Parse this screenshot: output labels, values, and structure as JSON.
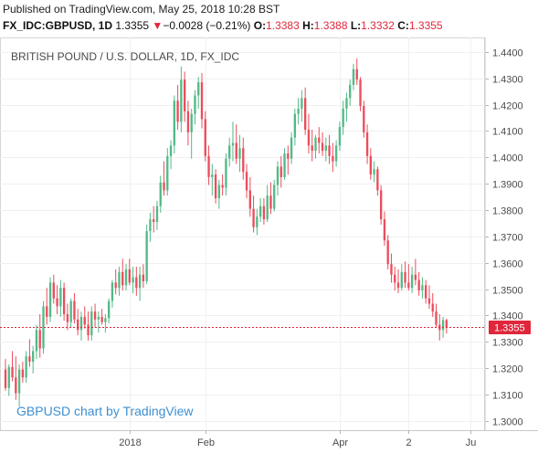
{
  "header": {
    "published": "Published on TradingView.com, May 25, 2018 10:28 BST",
    "symbol": "FX_IDC:GBPUSD, 1D",
    "last": "1.3355",
    "change_arrow": "▼",
    "change": "−0.0028 (−0.21%)",
    "open_label": "O:",
    "open": "1.3383",
    "high_label": "H:",
    "high": "1.3388",
    "low_label": "L:",
    "low": "1.3332",
    "close_label": "C:",
    "close": "1.3355"
  },
  "colors": {
    "up": "#53b987",
    "down": "#eb4d5c",
    "price_line": "#e0263b",
    "watermark": "#3d8fd1"
  },
  "chart_data": {
    "type": "candlestick",
    "title": "BRITISH POUND / U.S. DOLLAR, 1D, FX_IDC",
    "watermark": "GBPUSD chart by TradingView",
    "last_price_label": "1.3355",
    "last_price": 1.3355,
    "ylim": [
      1.2965,
      1.4455
    ],
    "y_ticks": [
      {
        "v": 1.44,
        "label": "1.4400"
      },
      {
        "v": 1.43,
        "label": "1.4300"
      },
      {
        "v": 1.42,
        "label": "1.4200"
      },
      {
        "v": 1.41,
        "label": "1.4100"
      },
      {
        "v": 1.4,
        "label": "1.4000"
      },
      {
        "v": 1.39,
        "label": "1.3900"
      },
      {
        "v": 1.38,
        "label": "1.3800"
      },
      {
        "v": 1.37,
        "label": "1.3700"
      },
      {
        "v": 1.36,
        "label": "1.3600"
      },
      {
        "v": 1.35,
        "label": "1.3500"
      },
      {
        "v": 1.34,
        "label": "1.3400"
      },
      {
        "v": 1.33,
        "label": "1.3300"
      },
      {
        "v": 1.32,
        "label": "1.3200"
      },
      {
        "v": 1.31,
        "label": "1.3100"
      },
      {
        "v": 1.3,
        "label": "1.3000"
      }
    ],
    "x_ticks": [
      {
        "i": 36,
        "label": "2018"
      },
      {
        "i": 58,
        "label": "Feb"
      },
      {
        "i": 97,
        "label": "Apr"
      },
      {
        "i": 117,
        "label": "2"
      },
      {
        "i": 135,
        "label": "Ju"
      }
    ],
    "x_count": 137,
    "candles": [
      [
        1.3195,
        1.3235,
        1.3115,
        1.3125
      ],
      [
        1.3125,
        1.3215,
        1.3095,
        1.3205
      ],
      [
        1.3205,
        1.3265,
        1.315,
        1.3165
      ],
      [
        1.3165,
        1.3245,
        1.308,
        1.3105
      ],
      [
        1.3105,
        1.3215,
        1.3055,
        1.3195
      ],
      [
        1.3195,
        1.3225,
        1.3145,
        1.3165
      ],
      [
        1.3165,
        1.3265,
        1.3145,
        1.3245
      ],
      [
        1.3245,
        1.331,
        1.3205,
        1.3225
      ],
      [
        1.3225,
        1.3285,
        1.318,
        1.3265
      ],
      [
        1.3265,
        1.3365,
        1.3235,
        1.3345
      ],
      [
        1.3345,
        1.3405,
        1.324,
        1.3275
      ],
      [
        1.3275,
        1.3455,
        1.3255,
        1.3435
      ],
      [
        1.3435,
        1.3505,
        1.3365,
        1.3395
      ],
      [
        1.3395,
        1.3545,
        1.3375,
        1.3525
      ],
      [
        1.3525,
        1.3555,
        1.3445,
        1.3465
      ],
      [
        1.3465,
        1.3515,
        1.3405,
        1.3435
      ],
      [
        1.3435,
        1.3535,
        1.3395,
        1.3505
      ],
      [
        1.3505,
        1.3525,
        1.338,
        1.3405
      ],
      [
        1.3405,
        1.3445,
        1.3345,
        1.3375
      ],
      [
        1.3375,
        1.3465,
        1.3355,
        1.3455
      ],
      [
        1.3455,
        1.3485,
        1.337,
        1.3385
      ],
      [
        1.3385,
        1.3425,
        1.3325,
        1.3345
      ],
      [
        1.3345,
        1.3415,
        1.3305,
        1.3395
      ],
      [
        1.3395,
        1.3435,
        1.335,
        1.3365
      ],
      [
        1.3365,
        1.3415,
        1.3305,
        1.3325
      ],
      [
        1.3325,
        1.3435,
        1.3305,
        1.3415
      ],
      [
        1.3415,
        1.3445,
        1.3355,
        1.3385
      ],
      [
        1.3385,
        1.3415,
        1.3335,
        1.3395
      ],
      [
        1.3395,
        1.3425,
        1.3365,
        1.3375
      ],
      [
        1.3375,
        1.3405,
        1.3335,
        1.339
      ],
      [
        1.339,
        1.3465,
        1.337,
        1.3455
      ],
      [
        1.3455,
        1.3535,
        1.343,
        1.3525
      ],
      [
        1.3525,
        1.3575,
        1.348,
        1.3505
      ],
      [
        1.3505,
        1.3585,
        1.3475,
        1.3565
      ],
      [
        1.3565,
        1.3615,
        1.3495,
        1.3515
      ],
      [
        1.3515,
        1.3595,
        1.3495,
        1.3575
      ],
      [
        1.3575,
        1.3615,
        1.3515,
        1.3525
      ],
      [
        1.3525,
        1.3585,
        1.3485,
        1.3545
      ],
      [
        1.3545,
        1.3585,
        1.3475,
        1.3505
      ],
      [
        1.3505,
        1.3585,
        1.3455,
        1.3555
      ],
      [
        1.3555,
        1.3595,
        1.3505,
        1.353
      ],
      [
        1.353,
        1.3745,
        1.352,
        1.372
      ],
      [
        1.372,
        1.379,
        1.368,
        1.3765
      ],
      [
        1.3765,
        1.3815,
        1.3715,
        1.3755
      ],
      [
        1.3755,
        1.3835,
        1.3725,
        1.3815
      ],
      [
        1.3815,
        1.393,
        1.379,
        1.3905
      ],
      [
        1.3905,
        1.3985,
        1.3855,
        1.3875
      ],
      [
        1.3875,
        1.4035,
        1.3855,
        1.4005
      ],
      [
        1.4005,
        1.4065,
        1.3955,
        1.4045
      ],
      [
        1.4045,
        1.4235,
        1.4015,
        1.4215
      ],
      [
        1.4215,
        1.4275,
        1.4105,
        1.4135
      ],
      [
        1.4135,
        1.4345,
        1.4095,
        1.4295
      ],
      [
        1.4295,
        1.4325,
        1.4135,
        1.4175
      ],
      [
        1.4175,
        1.4215,
        1.4045,
        1.4095
      ],
      [
        1.4095,
        1.4185,
        1.3995,
        1.4165
      ],
      [
        1.4165,
        1.4255,
        1.4125,
        1.4235
      ],
      [
        1.4235,
        1.4305,
        1.4185,
        1.4285
      ],
      [
        1.4285,
        1.432,
        1.411,
        1.4145
      ],
      [
        1.4145,
        1.4175,
        1.3985,
        1.4005
      ],
      [
        1.4005,
        1.4045,
        1.3895,
        1.3925
      ],
      [
        1.3925,
        1.3975,
        1.3855,
        1.3935
      ],
      [
        1.3935,
        1.3955,
        1.3825,
        1.3845
      ],
      [
        1.3845,
        1.3915,
        1.3805,
        1.3895
      ],
      [
        1.3895,
        1.3935,
        1.3855,
        1.3885
      ],
      [
        1.3885,
        1.4015,
        1.3855,
        1.3995
      ],
      [
        1.3995,
        1.4075,
        1.3965,
        1.4045
      ],
      [
        1.4045,
        1.4135,
        1.3985,
        1.4055
      ],
      [
        1.4055,
        1.4125,
        1.3975,
        1.3995
      ],
      [
        1.3995,
        1.4085,
        1.3945,
        1.4035
      ],
      [
        1.4035,
        1.4075,
        1.3915,
        1.3945
      ],
      [
        1.3945,
        1.3975,
        1.3845,
        1.3875
      ],
      [
        1.3875,
        1.3925,
        1.3775,
        1.3805
      ],
      [
        1.3805,
        1.3855,
        1.3715,
        1.3735
      ],
      [
        1.3735,
        1.3805,
        1.3705,
        1.3775
      ],
      [
        1.3775,
        1.3845,
        1.3755,
        1.3815
      ],
      [
        1.3815,
        1.3845,
        1.3745,
        1.3765
      ],
      [
        1.3765,
        1.3895,
        1.3755,
        1.3855
      ],
      [
        1.3855,
        1.3905,
        1.3785,
        1.3805
      ],
      [
        1.3805,
        1.3915,
        1.3795,
        1.3895
      ],
      [
        1.3895,
        1.3985,
        1.3855,
        1.3965
      ],
      [
        1.3965,
        1.4005,
        1.3885,
        1.3925
      ],
      [
        1.3925,
        1.4035,
        1.3915,
        1.4015
      ],
      [
        1.4015,
        1.4045,
        1.3935,
        1.3995
      ],
      [
        1.3995,
        1.4095,
        1.3975,
        1.4075
      ],
      [
        1.4075,
        1.4185,
        1.4045,
        1.4165
      ],
      [
        1.4165,
        1.4225,
        1.4125,
        1.4185
      ],
      [
        1.4185,
        1.4255,
        1.4135,
        1.4225
      ],
      [
        1.4225,
        1.4265,
        1.4085,
        1.4105
      ],
      [
        1.4105,
        1.4165,
        1.4015,
        1.4045
      ],
      [
        1.4045,
        1.4105,
        1.3985,
        1.4025
      ],
      [
        1.4025,
        1.4085,
        1.3995,
        1.4075
      ],
      [
        1.4075,
        1.4115,
        1.4015,
        1.4055
      ],
      [
        1.4055,
        1.4095,
        1.4005,
        1.4025
      ],
      [
        1.4025,
        1.4075,
        1.3985,
        1.4045
      ],
      [
        1.4045,
        1.4085,
        1.3975,
        1.4005
      ],
      [
        1.4005,
        1.4055,
        1.3945,
        1.3985
      ],
      [
        1.3985,
        1.4065,
        1.3965,
        1.4045
      ],
      [
        1.4045,
        1.4135,
        1.4025,
        1.4115
      ],
      [
        1.4115,
        1.4215,
        1.4085,
        1.4185
      ],
      [
        1.4185,
        1.4245,
        1.4135,
        1.4225
      ],
      [
        1.4225,
        1.4295,
        1.4195,
        1.4275
      ],
      [
        1.4275,
        1.4355,
        1.4255,
        1.4335
      ],
      [
        1.4335,
        1.4375,
        1.4275,
        1.4295
      ],
      [
        1.4295,
        1.4305,
        1.4175,
        1.4195
      ],
      [
        1.4195,
        1.4215,
        1.4075,
        1.4095
      ],
      [
        1.4095,
        1.4125,
        1.3975,
        1.4005
      ],
      [
        1.4005,
        1.4035,
        1.3915,
        1.3935
      ],
      [
        1.3935,
        1.3985,
        1.3905,
        1.3955
      ],
      [
        1.3955,
        1.3965,
        1.3855,
        1.3875
      ],
      [
        1.3875,
        1.3895,
        1.3745,
        1.3765
      ],
      [
        1.3765,
        1.3795,
        1.3665,
        1.3685
      ],
      [
        1.3685,
        1.3705,
        1.3575,
        1.3595
      ],
      [
        1.3595,
        1.3635,
        1.3525,
        1.3555
      ],
      [
        1.3555,
        1.3585,
        1.3495,
        1.3525
      ],
      [
        1.3525,
        1.3575,
        1.3485,
        1.3505
      ],
      [
        1.3505,
        1.3595,
        1.3495,
        1.3565
      ],
      [
        1.3565,
        1.3605,
        1.3505,
        1.3525
      ],
      [
        1.3525,
        1.3595,
        1.3495,
        1.3505
      ],
      [
        1.3505,
        1.3585,
        1.3485,
        1.3555
      ],
      [
        1.3555,
        1.3615,
        1.3515,
        1.3535
      ],
      [
        1.3535,
        1.3565,
        1.3475,
        1.3495
      ],
      [
        1.3495,
        1.3545,
        1.3465,
        1.3515
      ],
      [
        1.3515,
        1.3535,
        1.3445,
        1.3465
      ],
      [
        1.3465,
        1.3515,
        1.3425,
        1.3445
      ],
      [
        1.3445,
        1.3485,
        1.3395,
        1.3415
      ],
      [
        1.3415,
        1.3445,
        1.3355,
        1.3365
      ],
      [
        1.3365,
        1.3405,
        1.3305,
        1.3345
      ],
      [
        1.3345,
        1.3395,
        1.3315,
        1.3383
      ],
      [
        1.3383,
        1.3388,
        1.3332,
        1.3355
      ]
    ]
  }
}
